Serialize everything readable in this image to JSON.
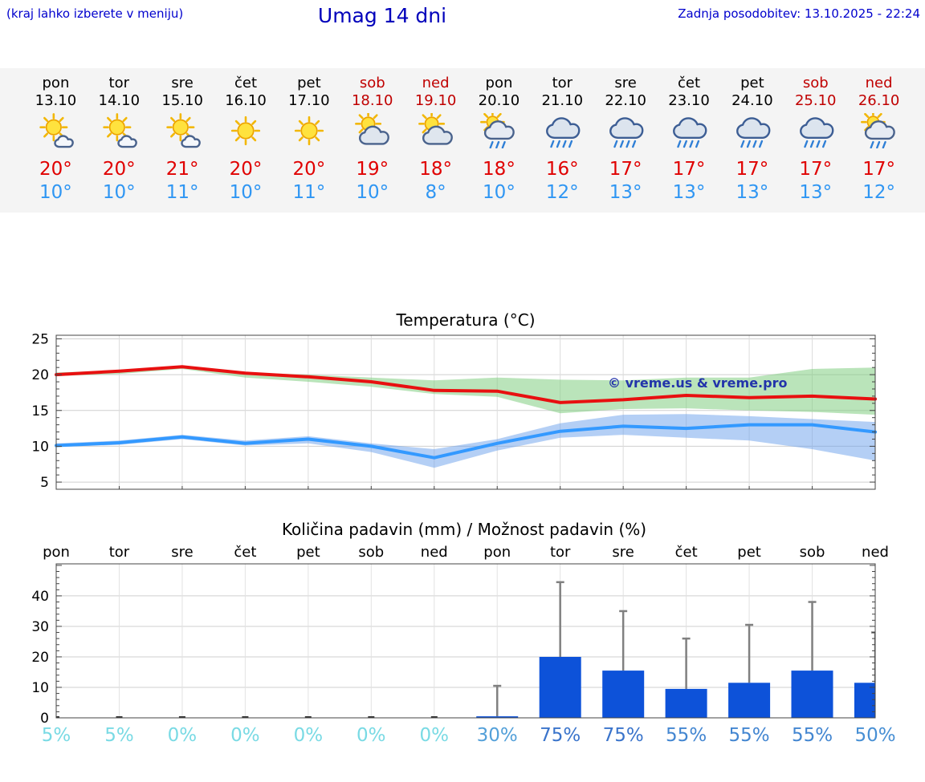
{
  "header": {
    "left_note": "(kraj lahko izberete v meniju)",
    "title": "Umag 14 dni",
    "last_update": "Zadnja posodobitev: 13.10.2025 - 22:24"
  },
  "colors": {
    "accent_blue": "#0000cd",
    "high_red": "#e00000",
    "low_blue": "#2f96f3",
    "bar_blue": "#0d52d9",
    "weekend_red": "#c00000"
  },
  "forecast": {
    "days": [
      {
        "name": "pon",
        "date": "13.10",
        "weekend": false,
        "icon": "mostly-sunny",
        "high": "20°",
        "low": "10°"
      },
      {
        "name": "tor",
        "date": "14.10",
        "weekend": false,
        "icon": "mostly-sunny",
        "high": "20°",
        "low": "10°"
      },
      {
        "name": "sre",
        "date": "15.10",
        "weekend": false,
        "icon": "mostly-sunny",
        "high": "21°",
        "low": "11°"
      },
      {
        "name": "čet",
        "date": "16.10",
        "weekend": false,
        "icon": "sunny",
        "high": "20°",
        "low": "10°"
      },
      {
        "name": "pet",
        "date": "17.10",
        "weekend": false,
        "icon": "sunny",
        "high": "20°",
        "low": "11°"
      },
      {
        "name": "sob",
        "date": "18.10",
        "weekend": true,
        "icon": "partly-cloudy",
        "high": "19°",
        "low": "10°"
      },
      {
        "name": "ned",
        "date": "19.10",
        "weekend": true,
        "icon": "partly-cloudy",
        "high": "18°",
        "low": "8°"
      },
      {
        "name": "pon",
        "date": "20.10",
        "weekend": false,
        "icon": "sun-showers",
        "high": "18°",
        "low": "10°"
      },
      {
        "name": "tor",
        "date": "21.10",
        "weekend": false,
        "icon": "rain",
        "high": "16°",
        "low": "12°"
      },
      {
        "name": "sre",
        "date": "22.10",
        "weekend": false,
        "icon": "rain",
        "high": "17°",
        "low": "13°"
      },
      {
        "name": "čet",
        "date": "23.10",
        "weekend": false,
        "icon": "rain",
        "high": "17°",
        "low": "13°"
      },
      {
        "name": "pet",
        "date": "24.10",
        "weekend": false,
        "icon": "rain",
        "high": "17°",
        "low": "13°"
      },
      {
        "name": "sob",
        "date": "25.10",
        "weekend": true,
        "icon": "rain",
        "high": "17°",
        "low": "13°"
      },
      {
        "name": "ned",
        "date": "26.10",
        "weekend": true,
        "icon": "sun-showers",
        "high": "17°",
        "low": "12°"
      }
    ]
  },
  "chart_data": [
    {
      "type": "line",
      "title": "Temperatura (°C)",
      "watermark": "© vreme.us & vreme.pro",
      "categories": [
        "13.10",
        "14.10",
        "15.10",
        "16.10",
        "17.10",
        "18.10",
        "19.10",
        "20.10",
        "21.10",
        "22.10",
        "23.10",
        "24.10",
        "25.10",
        "26.10"
      ],
      "ylim": [
        4,
        25.5
      ],
      "yticks": [
        5,
        10,
        15,
        20,
        25
      ],
      "grid": true,
      "series": [
        {
          "name": "max-temp",
          "color": "#e81010",
          "values": [
            20.0,
            20.5,
            21.1,
            20.2,
            19.7,
            19.0,
            17.8,
            17.7,
            16.1,
            16.5,
            17.1,
            16.8,
            17.0,
            16.6
          ]
        },
        {
          "name": "min-temp",
          "color": "#3399ff",
          "values": [
            10.1,
            10.5,
            11.3,
            10.4,
            11.0,
            10.0,
            8.4,
            10.4,
            12.1,
            12.8,
            12.5,
            13.0,
            13.0,
            12.0
          ]
        }
      ],
      "bands": [
        {
          "name": "max-range",
          "color": "rgba(130,205,130,0.55)",
          "upper": [
            20.3,
            20.6,
            21.3,
            20.3,
            20.0,
            19.6,
            19.2,
            19.6,
            19.3,
            19.2,
            19.6,
            19.6,
            20.8,
            21.0
          ],
          "lower": [
            19.8,
            20.1,
            20.8,
            19.6,
            19.0,
            18.3,
            17.3,
            16.9,
            14.6,
            15.2,
            15.3,
            15.0,
            14.8,
            14.4
          ]
        },
        {
          "name": "min-range",
          "color": "rgba(105,160,235,0.5)",
          "upper": [
            10.4,
            10.8,
            11.6,
            10.8,
            11.4,
            10.4,
            9.6,
            11.0,
            13.2,
            14.4,
            14.5,
            14.2,
            13.8,
            13.4
          ],
          "lower": [
            9.9,
            10.2,
            11.0,
            10.1,
            10.4,
            9.2,
            7.0,
            9.4,
            11.2,
            11.6,
            11.2,
            10.8,
            9.6,
            8.0
          ]
        }
      ]
    },
    {
      "type": "bar",
      "title": "Količina padavin (mm) / Možnost padavin (%)",
      "categories": [
        "pon",
        "tor",
        "sre",
        "čet",
        "pet",
        "sob",
        "ned",
        "pon",
        "tor",
        "sre",
        "čet",
        "pet",
        "sob",
        "ned"
      ],
      "values": [
        0.05,
        0.05,
        0.05,
        0.05,
        0.05,
        0.05,
        0.05,
        0.5,
        20,
        15.5,
        9.5,
        11.5,
        15.5,
        11.5
      ],
      "whiskers": [
        0,
        0,
        0,
        0,
        0,
        0,
        0,
        10.5,
        44.5,
        35,
        26,
        30.5,
        38,
        28
      ],
      "bar_color": "#0d52d9",
      "whisker_color": "#808080",
      "ylim": [
        0,
        50.5
      ],
      "yticks": [
        0,
        10,
        20,
        30,
        40
      ],
      "probabilities": [
        {
          "label": "5%",
          "color": "#79dae4"
        },
        {
          "label": "5%",
          "color": "#79dae4"
        },
        {
          "label": "0%",
          "color": "#79dae4"
        },
        {
          "label": "0%",
          "color": "#79dae4"
        },
        {
          "label": "0%",
          "color": "#79dae4"
        },
        {
          "label": "0%",
          "color": "#79dae4"
        },
        {
          "label": "0%",
          "color": "#79dae4"
        },
        {
          "label": "30%",
          "color": "#53a0d9"
        },
        {
          "label": "75%",
          "color": "#3a74cb"
        },
        {
          "label": "75%",
          "color": "#3a74cb"
        },
        {
          "label": "55%",
          "color": "#4386d1"
        },
        {
          "label": "55%",
          "color": "#4386d1"
        },
        {
          "label": "55%",
          "color": "#4386d1"
        },
        {
          "label": "50%",
          "color": "#478fd4"
        }
      ]
    }
  ]
}
